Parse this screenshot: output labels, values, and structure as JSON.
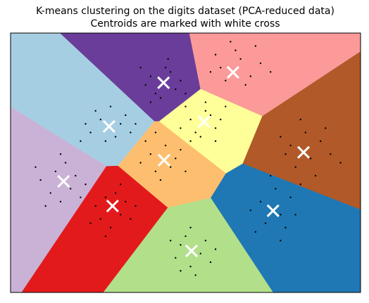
{
  "chart_data": {
    "type": "kmeans",
    "title": "K-means clustering on the digits dataset (PCA-reduced data)",
    "subtitle": "Centroids are marked with white cross",
    "xlim": [
      -30,
      40
    ],
    "ylim": [
      -30,
      30
    ],
    "region_colors": [
      "#6a3d9a",
      "#fb9a99",
      "#ffff99",
      "#a6cee3",
      "#b15928",
      "#fdbf6f",
      "#cab2d6",
      "#e31a1c",
      "#1f78b4",
      "#b2df8a"
    ],
    "centroid_color": "#ffffff",
    "point_color": "#000000",
    "centroids": {
      "x": [
        0.6,
        14.5,
        8.7,
        -10.3,
        28.6,
        0.7,
        -19.4,
        -9.6,
        22.5,
        6.2
      ],
      "y": [
        18.5,
        20.9,
        9.5,
        8.4,
        2.4,
        0.6,
        -4.3,
        -10.0,
        -11.1,
        -20.4
      ]
    },
    "points": {
      "x": [
        -2,
        1,
        3,
        -1,
        2,
        -3,
        4,
        0,
        1.5,
        -4,
        5,
        -2,
        12,
        16,
        18,
        13,
        15,
        20,
        11,
        17,
        14,
        22,
        10,
        19,
        6,
        9,
        11,
        7,
        10,
        5,
        12,
        8,
        13,
        4,
        9,
        11,
        -12,
        -8,
        -14,
        -11,
        -7,
        -15,
        -9,
        -13,
        -6,
        -10,
        -16,
        -5,
        26,
        30,
        32,
        27,
        29,
        34,
        25,
        31,
        33,
        28,
        36,
        24,
        -2,
        2,
        4,
        -1,
        1,
        -4,
        3,
        0,
        5,
        -3,
        6,
        -1,
        -21,
        -18,
        -22,
        -17,
        -20,
        -24,
        -16,
        -19,
        -25,
        -23,
        -15,
        -20,
        -11,
        -8,
        -12,
        -7,
        -10,
        -13,
        -6,
        -9,
        -14,
        -5,
        -11,
        -8,
        20,
        24,
        26,
        21,
        23,
        18,
        25,
        27,
        19,
        22,
        28,
        24,
        4,
        8,
        6,
        3,
        9,
        5,
        7,
        10,
        2,
        6,
        11,
        4
      ],
      "y": [
        20,
        22,
        17,
        16,
        21,
        18,
        19,
        15,
        24,
        22,
        16,
        14,
        22,
        24,
        20,
        19,
        26,
        23,
        25,
        18,
        28,
        21,
        21,
        27,
        10,
        12,
        8,
        7,
        11,
        13,
        10,
        6,
        13,
        8,
        14,
        5,
        10,
        9,
        7,
        5,
        11,
        9,
        6,
        12,
        7,
        13,
        5,
        9,
        4,
        1,
        5,
        -1,
        7,
        2,
        2,
        -3,
        8,
        10,
        0,
        6,
        2,
        -1,
        3,
        -2,
        4,
        0,
        1,
        -4,
        -2,
        5,
        5,
        7,
        -2,
        -6,
        -7,
        -3,
        -9,
        -4,
        -8,
        0,
        -1,
        -10,
        -5,
        2,
        -8,
        -12,
        -13,
        -9,
        -15,
        -10,
        -13,
        -7,
        -14,
        -10,
        -17,
        -5,
        -9,
        -12,
        -8,
        -14,
        -6,
        -11,
        -15,
        -12,
        -16,
        -3,
        -5,
        -18,
        -19,
        -21,
        -24,
        -22,
        -18,
        -17,
        -26,
        -23,
        -18,
        -15,
        -20,
        -25
      ]
    }
  }
}
